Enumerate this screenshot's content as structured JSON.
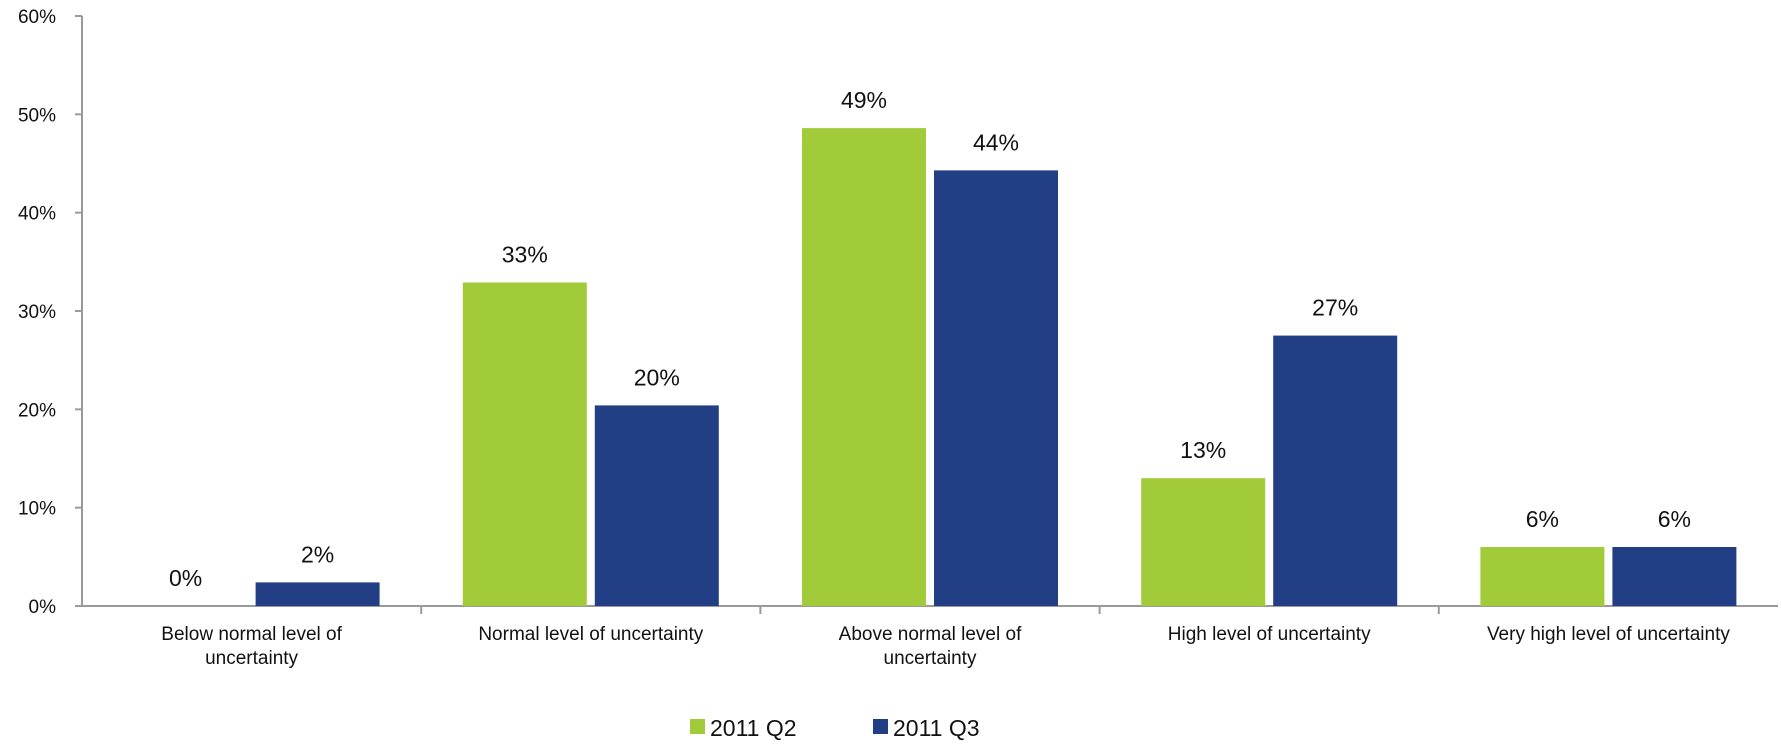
{
  "chart_data": {
    "type": "bar",
    "categories": [
      [
        "Below normal level of",
        "uncertainty"
      ],
      [
        "Normal level of uncertainty"
      ],
      [
        "Above normal level of",
        "uncertainty"
      ],
      [
        "High level of uncertainty"
      ],
      [
        "Very high level of uncertainty"
      ]
    ],
    "series": [
      {
        "name": "2011 Q2",
        "color": "#a2cb3a",
        "values": [
          0,
          32.9,
          48.6,
          13.0,
          6.0
        ],
        "labels": [
          "0%",
          "33%",
          "49%",
          "13%",
          "6%"
        ]
      },
      {
        "name": "2011 Q3",
        "color": "#223f85",
        "values": [
          2.4,
          20.4,
          44.3,
          27.5,
          6.0
        ],
        "labels": [
          "2%",
          "20%",
          "44%",
          "27%",
          "6%"
        ]
      }
    ],
    "ylim": [
      0,
      60
    ],
    "yticks": [
      0,
      10,
      20,
      30,
      40,
      50,
      60
    ],
    "ytick_labels": [
      "0%",
      "10%",
      "20%",
      "30%",
      "40%",
      "50%",
      "60%"
    ],
    "title": "",
    "xlabel": "",
    "ylabel": "",
    "grid": false,
    "legend_position": "bottom-center"
  }
}
